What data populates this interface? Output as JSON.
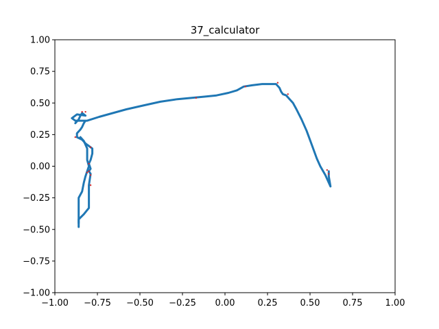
{
  "chart_data": {
    "type": "line",
    "title": "37_calculator",
    "xlabel": "",
    "ylabel": "",
    "xlim": [
      -1.0,
      1.0
    ],
    "ylim": [
      -1.0,
      1.0
    ],
    "xticks": [
      "−1.00",
      "−0.75",
      "−0.50",
      "−0.25",
      "0.00",
      "0.25",
      "0.50",
      "0.75",
      "1.00"
    ],
    "yticks": [
      "−1.00",
      "−0.75",
      "−0.50",
      "−0.25",
      "0.00",
      "0.25",
      "0.50",
      "0.75",
      "1.00"
    ],
    "grid": false,
    "colors": {
      "line": "#1f77b4",
      "points": "#d62728"
    },
    "series": [
      {
        "style": "line",
        "points": [
          [
            -0.86,
            -0.48
          ],
          [
            -0.86,
            -0.42
          ],
          [
            -0.83,
            -0.38
          ],
          [
            -0.8,
            -0.33
          ],
          [
            -0.8,
            -0.15
          ],
          [
            -0.79,
            -0.06
          ],
          [
            -0.8,
            -0.04
          ],
          [
            -0.79,
            -0.02
          ],
          [
            -0.8,
            0.02
          ],
          [
            -0.79,
            0.05
          ],
          [
            -0.78,
            0.1
          ],
          [
            -0.78,
            0.14
          ],
          [
            -0.8,
            0.16
          ],
          [
            -0.82,
            0.18
          ],
          [
            -0.84,
            0.21
          ],
          [
            -0.87,
            0.23
          ],
          [
            -0.87,
            0.26
          ],
          [
            -0.85,
            0.29
          ],
          [
            -0.84,
            0.31
          ],
          [
            -0.83,
            0.34
          ],
          [
            -0.82,
            0.36
          ],
          [
            -0.87,
            0.36
          ],
          [
            -0.88,
            0.34
          ],
          [
            -0.86,
            0.37
          ],
          [
            -0.85,
            0.4
          ],
          [
            -0.84,
            0.42
          ],
          [
            -0.82,
            0.4
          ],
          [
            -0.87,
            0.41
          ],
          [
            -0.88,
            0.4
          ],
          [
            -0.9,
            0.38
          ],
          [
            -0.88,
            0.36
          ],
          [
            -0.86,
            0.36
          ],
          [
            -0.81,
            0.36
          ],
          [
            -0.74,
            0.39
          ],
          [
            -0.66,
            0.42
          ],
          [
            -0.58,
            0.45
          ],
          [
            -0.48,
            0.48
          ],
          [
            -0.38,
            0.51
          ],
          [
            -0.28,
            0.53
          ],
          [
            -0.2,
            0.54
          ],
          [
            -0.12,
            0.55
          ],
          [
            -0.05,
            0.56
          ],
          [
            0.02,
            0.58
          ],
          [
            0.07,
            0.6
          ],
          [
            0.11,
            0.63
          ],
          [
            0.16,
            0.64
          ],
          [
            0.22,
            0.65
          ],
          [
            0.3,
            0.65
          ],
          [
            0.32,
            0.62
          ],
          [
            0.33,
            0.59
          ],
          [
            0.34,
            0.57
          ],
          [
            0.36,
            0.56
          ],
          [
            0.38,
            0.53
          ],
          [
            0.4,
            0.5
          ],
          [
            0.42,
            0.45
          ],
          [
            0.45,
            0.37
          ],
          [
            0.48,
            0.28
          ],
          [
            0.51,
            0.17
          ],
          [
            0.54,
            0.06
          ],
          [
            0.56,
            0.0
          ],
          [
            0.59,
            -0.07
          ],
          [
            0.62,
            -0.16
          ],
          [
            0.61,
            -0.08
          ],
          [
            0.61,
            -0.04
          ]
        ]
      },
      {
        "style": "line",
        "points": [
          [
            -0.86,
            -0.45
          ],
          [
            -0.86,
            -0.25
          ],
          [
            -0.84,
            -0.2
          ],
          [
            -0.83,
            -0.13
          ],
          [
            -0.82,
            -0.08
          ],
          [
            -0.81,
            -0.04
          ],
          [
            -0.8,
            0.0
          ],
          [
            -0.81,
            0.05
          ],
          [
            -0.81,
            0.1
          ],
          [
            -0.81,
            0.14
          ],
          [
            -0.83,
            0.2
          ],
          [
            -0.85,
            0.23
          ]
        ]
      },
      {
        "style": "points",
        "points": [
          [
            -0.88,
            0.23
          ],
          [
            -0.84,
            0.43
          ],
          [
            -0.82,
            0.43
          ],
          [
            -0.79,
            0.15
          ],
          [
            -0.8,
            0.02
          ],
          [
            -0.8,
            -0.04
          ],
          [
            -0.81,
            -0.05
          ],
          [
            -0.79,
            -0.07
          ],
          [
            -0.79,
            -0.15
          ],
          [
            -0.17,
            0.54
          ],
          [
            0.12,
            0.63
          ],
          [
            0.31,
            0.66
          ],
          [
            0.37,
            0.57
          ],
          [
            0.6,
            -0.03
          ],
          [
            0.61,
            -0.06
          ]
        ]
      }
    ]
  }
}
